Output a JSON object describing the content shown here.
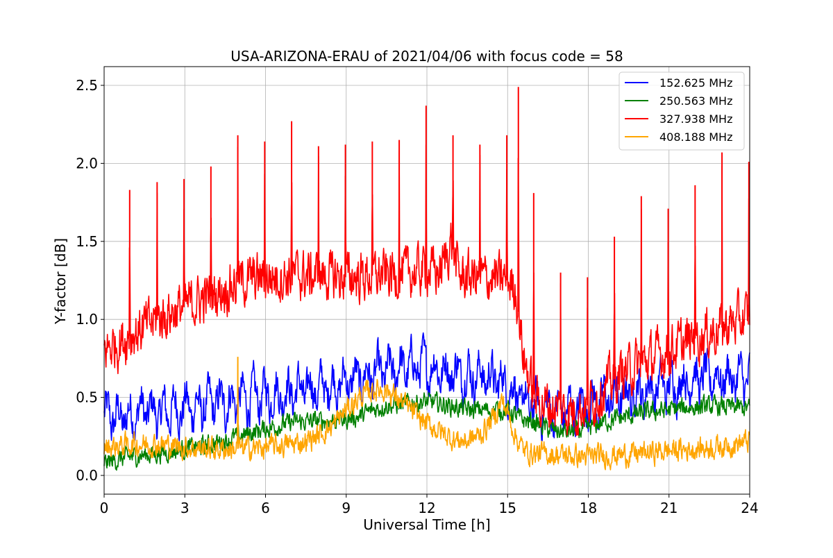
{
  "chart_data": {
    "type": "line",
    "title": "USA-ARIZONA-ERAU of 2021/04/06 with focus code = 58",
    "xlabel": "Universal Time [h]",
    "ylabel": "Y-factor [dB]",
    "xlim": [
      0,
      24
    ],
    "ylim": [
      -0.12,
      2.62
    ],
    "xticks": [
      0,
      3,
      6,
      9,
      12,
      15,
      18,
      21,
      24
    ],
    "xtick_labels": [
      "0",
      "3",
      "6",
      "9",
      "12",
      "15",
      "18",
      "21",
      "24"
    ],
    "yticks": [
      0.0,
      0.5,
      1.0,
      1.5,
      2.0,
      2.5
    ],
    "ytick_labels": [
      "0.0",
      "0.5",
      "1.0",
      "1.5",
      "2.0",
      "2.5"
    ],
    "grid": true,
    "legend_position": "top-right",
    "series": [
      {
        "name": "152.625 MHz",
        "color": "#0000ff",
        "x": [
          0,
          0.5,
          1,
          1.5,
          2,
          2.5,
          3,
          3.5,
          4,
          4.5,
          5,
          5.5,
          6,
          6.5,
          7,
          7.5,
          8,
          8.5,
          9,
          9.5,
          10,
          10.5,
          11,
          11.5,
          12,
          12.5,
          13,
          13.5,
          14,
          14.5,
          15,
          15.5,
          16,
          16.5,
          17,
          17.5,
          18,
          18.5,
          19,
          19.5,
          20,
          20.5,
          21,
          21.5,
          22,
          22.5,
          23,
          23.5,
          24
        ],
        "y": [
          0.38,
          0.37,
          0.38,
          0.42,
          0.4,
          0.42,
          0.44,
          0.43,
          0.46,
          0.47,
          0.48,
          0.5,
          0.52,
          0.52,
          0.54,
          0.55,
          0.56,
          0.58,
          0.6,
          0.62,
          0.64,
          0.66,
          0.68,
          0.7,
          0.7,
          0.68,
          0.66,
          0.65,
          0.64,
          0.62,
          0.58,
          0.48,
          0.44,
          0.42,
          0.42,
          0.43,
          0.45,
          0.48,
          0.5,
          0.52,
          0.54,
          0.56,
          0.58,
          0.6,
          0.62,
          0.63,
          0.63,
          0.62,
          0.62
        ],
        "noise": 0.1,
        "osc_amp": 0.08,
        "spikes": []
      },
      {
        "name": "250.563 MHz",
        "color": "#008000",
        "x": [
          0,
          1,
          2,
          3,
          4,
          5,
          6,
          7,
          8,
          9,
          9.5,
          10,
          10.5,
          11,
          11.5,
          12,
          12.5,
          13,
          13.5,
          14,
          14.5,
          15,
          15.5,
          16,
          16.5,
          17,
          17.5,
          18,
          18.5,
          19,
          20,
          21,
          22,
          23,
          24
        ],
        "y": [
          0.08,
          0.12,
          0.14,
          0.17,
          0.2,
          0.25,
          0.3,
          0.34,
          0.35,
          0.36,
          0.38,
          0.42,
          0.45,
          0.45,
          0.47,
          0.47,
          0.46,
          0.44,
          0.42,
          0.42,
          0.42,
          0.42,
          0.36,
          0.34,
          0.3,
          0.28,
          0.28,
          0.3,
          0.34,
          0.36,
          0.4,
          0.42,
          0.44,
          0.44,
          0.43
        ],
        "noise": 0.05,
        "osc_amp": 0,
        "spikes": []
      },
      {
        "name": "327.938 MHz",
        "color": "#ff0000",
        "x": [
          0,
          0.5,
          1,
          1.5,
          2,
          2.5,
          3,
          3.5,
          4,
          4.5,
          5,
          6,
          7,
          8,
          9,
          10,
          11,
          11.5,
          12,
          12.5,
          12.9,
          13.2,
          14,
          15,
          15.3,
          15.6,
          16,
          16.5,
          17,
          17.5,
          18,
          18.5,
          19,
          19.5,
          20,
          20.5,
          21,
          22,
          23,
          24
        ],
        "y": [
          0.8,
          0.85,
          0.9,
          0.95,
          1.0,
          1.05,
          1.08,
          1.12,
          1.15,
          1.2,
          1.24,
          1.27,
          1.28,
          1.28,
          1.27,
          1.28,
          1.29,
          1.3,
          1.32,
          1.3,
          1.5,
          1.28,
          1.27,
          1.25,
          1.2,
          0.75,
          0.5,
          0.45,
          0.42,
          0.42,
          0.45,
          0.55,
          0.62,
          0.68,
          0.72,
          0.76,
          0.8,
          0.88,
          0.95,
          1.02
        ],
        "noise": 0.13,
        "osc_amp": 0,
        "spikes": [
          {
            "x": 0.95,
            "y": 1.83
          },
          {
            "x": 1.97,
            "y": 1.88
          },
          {
            "x": 2.97,
            "y": 1.9
          },
          {
            "x": 3.97,
            "y": 1.98
          },
          {
            "x": 4.97,
            "y": 2.18
          },
          {
            "x": 5.97,
            "y": 2.14
          },
          {
            "x": 6.97,
            "y": 2.27
          },
          {
            "x": 7.97,
            "y": 2.11
          },
          {
            "x": 8.97,
            "y": 2.12
          },
          {
            "x": 9.97,
            "y": 2.14
          },
          {
            "x": 10.97,
            "y": 2.15
          },
          {
            "x": 11.97,
            "y": 2.37
          },
          {
            "x": 12.97,
            "y": 2.18
          },
          {
            "x": 13.97,
            "y": 2.12
          },
          {
            "x": 14.97,
            "y": 2.18
          },
          {
            "x": 15.4,
            "y": 2.49
          },
          {
            "x": 15.97,
            "y": 1.81
          },
          {
            "x": 16.97,
            "y": 1.3
          },
          {
            "x": 17.97,
            "y": 1.27
          },
          {
            "x": 18.97,
            "y": 1.53
          },
          {
            "x": 19.97,
            "y": 1.79
          },
          {
            "x": 20.97,
            "y": 1.71
          },
          {
            "x": 21.97,
            "y": 1.86
          },
          {
            "x": 22.97,
            "y": 2.07
          },
          {
            "x": 23.97,
            "y": 2.01
          }
        ]
      },
      {
        "name": "408.188 MHz",
        "color": "#ffa500",
        "x": [
          0,
          1,
          2,
          3,
          4,
          5,
          6,
          7,
          7.5,
          8,
          8.5,
          9,
          9.5,
          10,
          10.5,
          11,
          11.5,
          12,
          12.5,
          13,
          13.5,
          14,
          14.5,
          14.8,
          15,
          15.3,
          15.6,
          16,
          17,
          18,
          19,
          20,
          21,
          22,
          23,
          24
        ],
        "y": [
          0.18,
          0.2,
          0.2,
          0.18,
          0.17,
          0.17,
          0.18,
          0.2,
          0.22,
          0.26,
          0.32,
          0.42,
          0.5,
          0.55,
          0.55,
          0.48,
          0.4,
          0.33,
          0.28,
          0.23,
          0.22,
          0.26,
          0.38,
          0.48,
          0.4,
          0.25,
          0.16,
          0.14,
          0.13,
          0.12,
          0.13,
          0.14,
          0.16,
          0.17,
          0.19,
          0.22
        ],
        "noise": 0.06,
        "osc_amp": 0,
        "spikes": [
          {
            "x": 4.97,
            "y": 0.76
          }
        ]
      }
    ]
  }
}
